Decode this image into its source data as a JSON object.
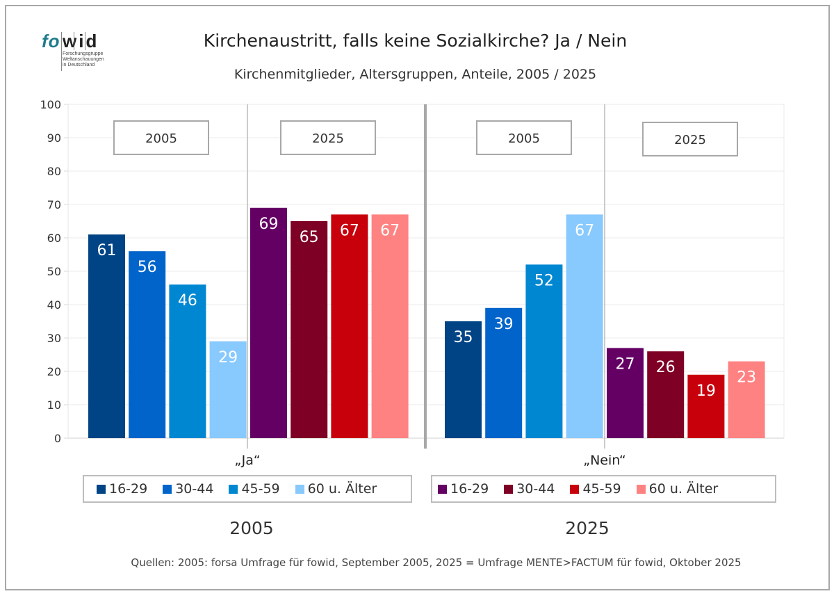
{
  "logo": {
    "part1": "fo",
    "part2": "wid",
    "subtitle_lines": "Forschungsgruppe\nWeltanschauungen\nin Deutschland"
  },
  "header": {
    "title": "Kirchenaustritt, falls keine Sozialkirche? Ja / Nein",
    "subtitle": "Kirchenmitglieder, Altersgruppen, Anteile, 2005 / 2025"
  },
  "chart_data": {
    "type": "bar",
    "title": "Kirchenaustritt, falls keine Sozialkirche? Ja / Nein",
    "subtitle": "Kirchenmitglieder, Altersgruppen, Anteile, 2005 / 2025",
    "ylim": [
      0,
      100
    ],
    "yticks": [
      0,
      10,
      20,
      30,
      40,
      50,
      60,
      70,
      80,
      90,
      100
    ],
    "grid": true,
    "groups": [
      {
        "name": "„Ja“",
        "subgroups": [
          {
            "year": "2005",
            "series": [
              {
                "name": "16-29",
                "value": 61,
                "color": "#004485"
              },
              {
                "name": "30-44",
                "value": 56,
                "color": "#0064cb"
              },
              {
                "name": "45-59",
                "value": 46,
                "color": "#0087d2"
              },
              {
                "name": "60 u. Älter",
                "value": 29,
                "color": "#88c9fe"
              }
            ]
          },
          {
            "year": "2025",
            "series": [
              {
                "name": "16-29",
                "value": 69,
                "color": "#640064"
              },
              {
                "name": "30-44",
                "value": 65,
                "color": "#7e0024"
              },
              {
                "name": "45-59",
                "value": 67,
                "color": "#c8000c"
              },
              {
                "name": "60 u. Älter",
                "value": 67,
                "color": "#ff8282"
              }
            ]
          }
        ]
      },
      {
        "name": "„Nein“",
        "subgroups": [
          {
            "year": "2005",
            "series": [
              {
                "name": "16-29",
                "value": 35,
                "color": "#004485"
              },
              {
                "name": "30-44",
                "value": 39,
                "color": "#0064cb"
              },
              {
                "name": "45-59",
                "value": 52,
                "color": "#0087d2"
              },
              {
                "name": "60 u. Älter",
                "value": 67,
                "color": "#88c9fe"
              }
            ]
          },
          {
            "year": "2025",
            "series": [
              {
                "name": "16-29",
                "value": 27,
                "color": "#640064"
              },
              {
                "name": "30-44",
                "value": 26,
                "color": "#7e0024"
              },
              {
                "name": "45-59",
                "value": 19,
                "color": "#c8000c"
              },
              {
                "name": "60 u. Älter",
                "value": 23,
                "color": "#ff8282"
              }
            ]
          }
        ]
      }
    ],
    "legends": [
      {
        "year": "2005",
        "placement": "bottom-left",
        "entries": [
          {
            "label": "16-29",
            "color": "#004485"
          },
          {
            "label": "30-44",
            "color": "#0064cb"
          },
          {
            "label": "45-59",
            "color": "#0087d2"
          },
          {
            "label": "60 u. Älter",
            "color": "#88c9fe"
          }
        ]
      },
      {
        "year": "2025",
        "placement": "bottom-right",
        "entries": [
          {
            "label": "16-29",
            "color": "#640064"
          },
          {
            "label": "30-44",
            "color": "#7e0024"
          },
          {
            "label": "45-59",
            "color": "#c8000c"
          },
          {
            "label": "60 u. Älter",
            "color": "#ff8282"
          }
        ]
      }
    ]
  },
  "footer": {
    "legend_year_left": "2005",
    "legend_year_right": "2025",
    "source": "Quellen: 2005: forsa Umfrage für fowid, September 2005, 2025 = Umfrage MENTE>FACTUM für fowid, Oktober 2025"
  }
}
